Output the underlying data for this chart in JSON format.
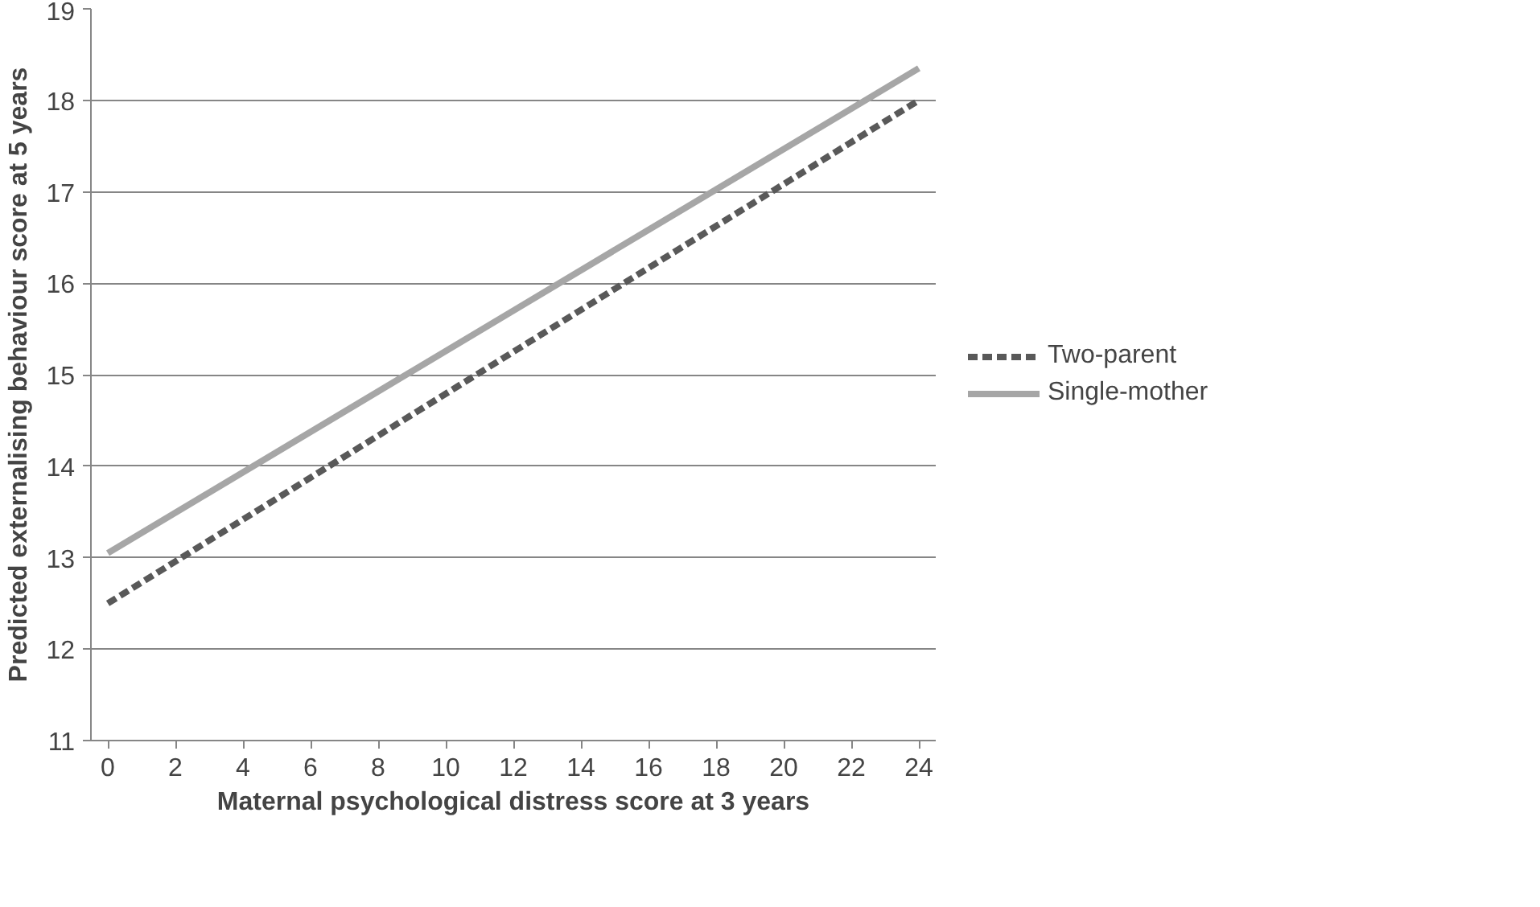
{
  "chart_data": {
    "type": "line",
    "xlabel": "Maternal psychological distress score at 3 years",
    "ylabel": "Predicted externalising behaviour score at 5 years",
    "x": [
      0,
      12,
      24
    ],
    "series": [
      {
        "name": "Two-parent",
        "color": "#595959",
        "values": [
          12.5,
          15.25,
          18.0
        ],
        "line_style": "dashed"
      },
      {
        "name": "Single-mother",
        "color": "#a6a6a6",
        "values": [
          13.05,
          15.7,
          18.35
        ],
        "line_style": "solid"
      }
    ],
    "xlim": [
      -0.5,
      24.5
    ],
    "xticks": [
      0,
      2,
      4,
      6,
      8,
      10,
      12,
      14,
      16,
      18,
      20,
      22,
      24
    ],
    "ylim": [
      11,
      19
    ],
    "yticks": [
      11,
      12,
      13,
      14,
      15,
      16,
      17,
      18,
      19
    ],
    "grid": "y",
    "legend": "right",
    "marker": "none"
  }
}
